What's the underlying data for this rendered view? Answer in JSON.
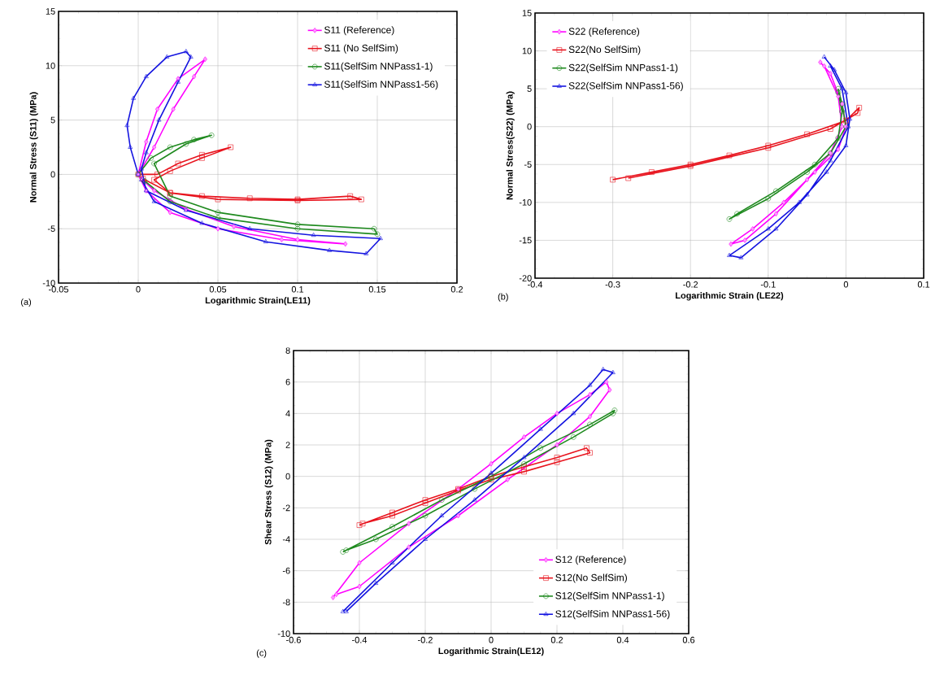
{
  "chart_data": [
    {
      "type": "line",
      "xlabel": "Logarithmic Strain(LE11)",
      "ylabel": "Normal Stress (S11) (MPa)",
      "annotations": [
        "(a)"
      ],
      "xlim": [
        -0.05,
        0.2
      ],
      "ylim": [
        -10,
        15
      ],
      "xticks": [
        -0.05,
        0,
        0.05,
        0.1,
        0.15,
        0.2
      ],
      "yticks": [
        -10,
        -5,
        0,
        5,
        10,
        15
      ],
      "grid": true,
      "legend": "top right",
      "line_style": "solid",
      "series": [
        {
          "name": "S11 (Reference)",
          "color": "#ff00ff",
          "marker": "diamond",
          "x": [
            0,
            0.005,
            0.012,
            0.025,
            0.042,
            0.035,
            0.022,
            0.01,
            0,
            0.005,
            0.02,
            0.05,
            0.09,
            0.13,
            0.1,
            0.06,
            0.03,
            0.01,
            0.002
          ],
          "values": [
            0,
            3,
            6,
            8.8,
            10.6,
            9,
            6,
            2.5,
            0,
            -1.5,
            -3.5,
            -5,
            -6,
            -6.4,
            -6,
            -4.8,
            -3.2,
            -1.5,
            -0.4
          ]
        },
        {
          "name": "S11 (No SelfSim)",
          "color": "#e8141e",
          "marker": "square",
          "x": [
            0,
            0.012,
            0.025,
            0.04,
            0.058,
            0.04,
            0.02,
            0.01,
            0.02,
            0.04,
            0.07,
            0.1,
            0.133,
            0.14,
            0.1,
            0.05,
            0.02,
            0.003
          ],
          "values": [
            0,
            0,
            1,
            1.8,
            2.5,
            1.5,
            0.3,
            -0.5,
            -1.7,
            -2,
            -2.2,
            -2.3,
            -2,
            -2.3,
            -2.4,
            -2.3,
            -1.7,
            -0.4
          ]
        },
        {
          "name": "S11(SelfSim NNPass1-1)",
          "color": "#1f8a1f",
          "marker": "circle",
          "x": [
            0,
            0.008,
            0.02,
            0.035,
            0.046,
            0.03,
            0.01,
            0.02,
            0.05,
            0.1,
            0.148,
            0.15,
            0.1,
            0.05,
            0.02,
            0.004
          ],
          "values": [
            0,
            1.5,
            2.5,
            3.2,
            3.6,
            2.8,
            1,
            -2,
            -3.5,
            -4.6,
            -5,
            -5.5,
            -5,
            -4,
            -2.5,
            -0.6
          ]
        },
        {
          "name": "S11(SelfSim NNPass1-56)",
          "color": "#1414e0",
          "marker": "triangle",
          "x": [
            0,
            -0.005,
            -0.007,
            -0.003,
            0.005,
            0.018,
            0.03,
            0.033,
            0.025,
            0.013,
            0.005,
            0.002,
            0.005,
            0.03,
            0.07,
            0.11,
            0.152,
            0.143,
            0.12,
            0.08,
            0.04,
            0.01,
            0.002
          ],
          "values": [
            0,
            2.5,
            4.5,
            7,
            9,
            10.8,
            11.3,
            10.8,
            8.5,
            5,
            2,
            0.5,
            -1.5,
            -3.3,
            -5,
            -5.6,
            -5.9,
            -7.3,
            -7,
            -6.2,
            -4.5,
            -2.5,
            -0.5
          ]
        }
      ]
    },
    {
      "type": "line",
      "xlabel": "Logarithmic Strain (LE22)",
      "ylabel": "Normal Stress(S22) (MPa)",
      "annotations": [
        "(b)"
      ],
      "xlim": [
        -0.4,
        0.1
      ],
      "ylim": [
        -20,
        15
      ],
      "xticks": [
        -0.4,
        -0.3,
        -0.2,
        -0.1,
        0,
        0.1
      ],
      "yticks": [
        -20,
        -15,
        -10,
        -5,
        0,
        5,
        10,
        15
      ],
      "grid": true,
      "legend": "top left",
      "line_style": "solid",
      "series": [
        {
          "name": "S22 (Reference)",
          "color": "#ff00ff",
          "marker": "diamond",
          "x": [
            -0.033,
            -0.02,
            -0.005,
            0,
            -0.01,
            -0.04,
            -0.08,
            -0.12,
            -0.148,
            -0.13,
            -0.09,
            -0.05,
            -0.02,
            -0.005,
            -0.01,
            -0.028
          ],
          "values": [
            8.5,
            7,
            3,
            0,
            -3,
            -6,
            -10,
            -13.5,
            -15.5,
            -15,
            -11.5,
            -7,
            -3.5,
            0,
            4,
            8
          ]
        },
        {
          "name": "S22(No SelfSim)",
          "color": "#e8141e",
          "marker": "square",
          "x": [
            -0.3,
            -0.25,
            -0.2,
            -0.15,
            -0.1,
            -0.05,
            0,
            0.017,
            0.015,
            -0.02,
            -0.1,
            -0.2,
            -0.28
          ],
          "values": [
            -7,
            -6,
            -5,
            -3.8,
            -2.5,
            -1,
            0.8,
            2.5,
            1.8,
            -0.3,
            -2.8,
            -5.2,
            -6.8
          ]
        },
        {
          "name": "S22(SelfSim NNPass1-1)",
          "color": "#1f8a1f",
          "marker": "circle",
          "x": [
            -0.01,
            -0.005,
            0,
            -0.02,
            -0.05,
            -0.1,
            -0.15,
            -0.14,
            -0.09,
            -0.04,
            -0.01,
            -0.005,
            -0.01
          ],
          "values": [
            5,
            3,
            0,
            -3.5,
            -6,
            -9.5,
            -12.2,
            -11.5,
            -8.5,
            -5,
            -1.5,
            2,
            4.5
          ]
        },
        {
          "name": "S22(SelfSim NNPass1-56)",
          "color": "#1414e0",
          "marker": "triangle",
          "x": [
            -0.028,
            -0.015,
            0,
            0.005,
            0,
            -0.025,
            -0.06,
            -0.1,
            -0.15,
            -0.135,
            -0.09,
            -0.05,
            -0.02,
            0.003,
            -0.005,
            -0.02
          ],
          "values": [
            9.2,
            7.5,
            4.5,
            1,
            -2.5,
            -6,
            -10,
            -13.5,
            -17,
            -17.3,
            -13.5,
            -9,
            -4.5,
            0,
            5,
            8
          ]
        }
      ]
    },
    {
      "type": "line",
      "xlabel": "Logarithmic Strain(LE12)",
      "ylabel": "Shear Stress (S12) (MPa)",
      "annotations": [
        "(c)"
      ],
      "xlim": [
        -0.6,
        0.6
      ],
      "ylim": [
        -10,
        8
      ],
      "xticks": [
        -0.6,
        -0.4,
        -0.2,
        0,
        0.2,
        0.4,
        0.6
      ],
      "yticks": [
        -10,
        -8,
        -6,
        -4,
        -2,
        0,
        2,
        4,
        6,
        8
      ],
      "grid": true,
      "legend": "bottom right",
      "line_style": "solid",
      "series": [
        {
          "name": "S12 (Reference)",
          "color": "#ff00ff",
          "marker": "diamond",
          "x": [
            -0.48,
            -0.4,
            -0.25,
            -0.1,
            0,
            0.1,
            0.2,
            0.3,
            0.35,
            0.36,
            0.3,
            0.2,
            0.05,
            -0.1,
            -0.25,
            -0.4,
            -0.47
          ],
          "values": [
            -7.7,
            -5.5,
            -3,
            -0.8,
            0.8,
            2.5,
            4,
            5.2,
            6,
            5.5,
            3.8,
            2,
            -0.2,
            -2.5,
            -4.5,
            -7,
            -7.5
          ]
        },
        {
          "name": "S12(No SelfSim)",
          "color": "#e8141e",
          "marker": "square",
          "x": [
            -0.4,
            -0.3,
            -0.2,
            -0.1,
            0,
            0.1,
            0.2,
            0.29,
            0.3,
            0.2,
            0.1,
            0,
            -0.1,
            -0.2,
            -0.3,
            -0.39
          ],
          "values": [
            -3.1,
            -2.3,
            -1.5,
            -0.8,
            0,
            0.6,
            1.2,
            1.8,
            1.5,
            0.9,
            0.3,
            -0.2,
            -0.9,
            -1.7,
            -2.5,
            -3
          ]
        },
        {
          "name": "S12(SelfSim NNPass1-1)",
          "color": "#1f8a1f",
          "marker": "circle",
          "x": [
            -0.45,
            -0.3,
            -0.15,
            0,
            0.15,
            0.3,
            0.375,
            0.37,
            0.25,
            0.1,
            -0.05,
            -0.2,
            -0.35,
            -0.44
          ],
          "values": [
            -4.8,
            -3.2,
            -1.5,
            0,
            1.8,
            3.3,
            4.2,
            4,
            2.5,
            0.8,
            -0.8,
            -2.5,
            -4,
            -4.7
          ]
        },
        {
          "name": "S12(SelfSim NNPass1-56)",
          "color": "#1414e0",
          "marker": "triangle",
          "x": [
            -0.45,
            -0.3,
            -0.15,
            0,
            0.15,
            0.3,
            0.34,
            0.37,
            0.25,
            0.1,
            -0.05,
            -0.2,
            -0.35,
            -0.44
          ],
          "values": [
            -8.6,
            -5.5,
            -2.5,
            0.2,
            3,
            5.8,
            6.8,
            6.6,
            4,
            1.2,
            -1.5,
            -4,
            -6.8,
            -8.6
          ]
        }
      ]
    }
  ]
}
